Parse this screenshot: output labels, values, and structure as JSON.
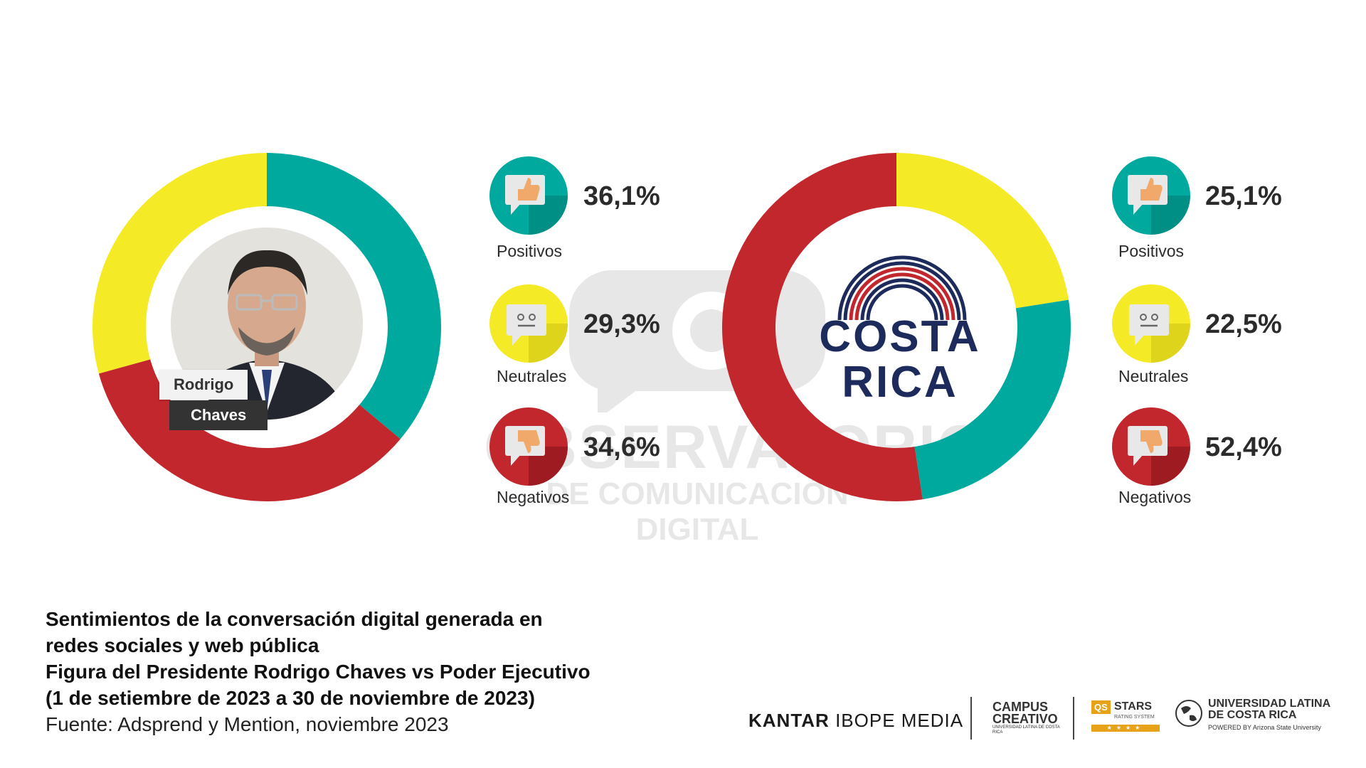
{
  "watermark": {
    "line1": "OBSERVATORIO",
    "line2": "DE COMUNICACIÓN DIGITAL"
  },
  "person": {
    "first_name": "Rodrigo",
    "last_name": "Chaves"
  },
  "logo_text": {
    "line1": "COSTA",
    "line2": "RICA"
  },
  "chart_data": [
    {
      "type": "pie",
      "categories": [
        "Positivos",
        "Neutrales",
        "Negativos"
      ],
      "values": [
        36.1,
        29.3,
        34.6
      ],
      "labels": [
        "36,1%",
        "29,3%",
        "34,6%"
      ],
      "start_order": [
        "Positivos",
        "Negativos",
        "Neutrales"
      ],
      "colors": [
        "#00a99d",
        "#f5ea26",
        "#c1272d"
      ],
      "donut": true,
      "legend_position": "right"
    },
    {
      "type": "pie",
      "categories": [
        "Positivos",
        "Neutrales",
        "Negativos"
      ],
      "values": [
        25.1,
        22.5,
        52.4
      ],
      "labels": [
        "25,1%",
        "22,5%",
        "52,4%"
      ],
      "start_order": [
        "Neutrales",
        "Positivos",
        "Negativos"
      ],
      "colors": [
        "#00a99d",
        "#f5ea26",
        "#c1272d"
      ],
      "donut": true,
      "legend_position": "right"
    }
  ],
  "legend_left": [
    {
      "label": "Positivos",
      "value": "36,1%",
      "icon": "thumbs-up-icon",
      "color": "#00a99d"
    },
    {
      "label": "Neutrales",
      "value": "29,3%",
      "icon": "neutral-face-icon",
      "color": "#f5ea26"
    },
    {
      "label": "Negativos",
      "value": "34,6%",
      "icon": "thumbs-down-icon",
      "color": "#c1272d"
    }
  ],
  "legend_right": [
    {
      "label": "Positivos",
      "value": "25,1%",
      "icon": "thumbs-up-icon",
      "color": "#00a99d"
    },
    {
      "label": "Neutrales",
      "value": "22,5%",
      "icon": "neutral-face-icon",
      "color": "#f5ea26"
    },
    {
      "label": "Negativos",
      "value": "52,4%",
      "icon": "thumbs-down-icon",
      "color": "#c1272d"
    }
  ],
  "caption": {
    "line1": "Sentimientos de la conversación digital generada en",
    "line2": "redes sociales y web pública",
    "line3": "Figura del Presidente Rodrigo Chaves vs Poder Ejecutivo",
    "line4": "(1 de setiembre de 2023 a 30 de noviembre de 2023)",
    "source": "Fuente: Adsprend y Mention, noviembre 2023"
  },
  "footer_logos": {
    "kantar_bold": "KANTAR",
    "kantar_rest": "IBOPE MEDIA",
    "campus_line1": "CAMPUS",
    "campus_line2": "CREATIVO",
    "campus_sub": "UNIVERSIDAD LATINA DE COSTA RICA",
    "qs_badge": "QS",
    "qs_stars": "STARS",
    "qs_sub": "RATING SYSTEM",
    "ulatina_line1": "UNIVERSIDAD LATINA",
    "ulatina_line2": "DE COSTA RICA",
    "ulatina_sub": "POWERED BY Arizona State University"
  }
}
